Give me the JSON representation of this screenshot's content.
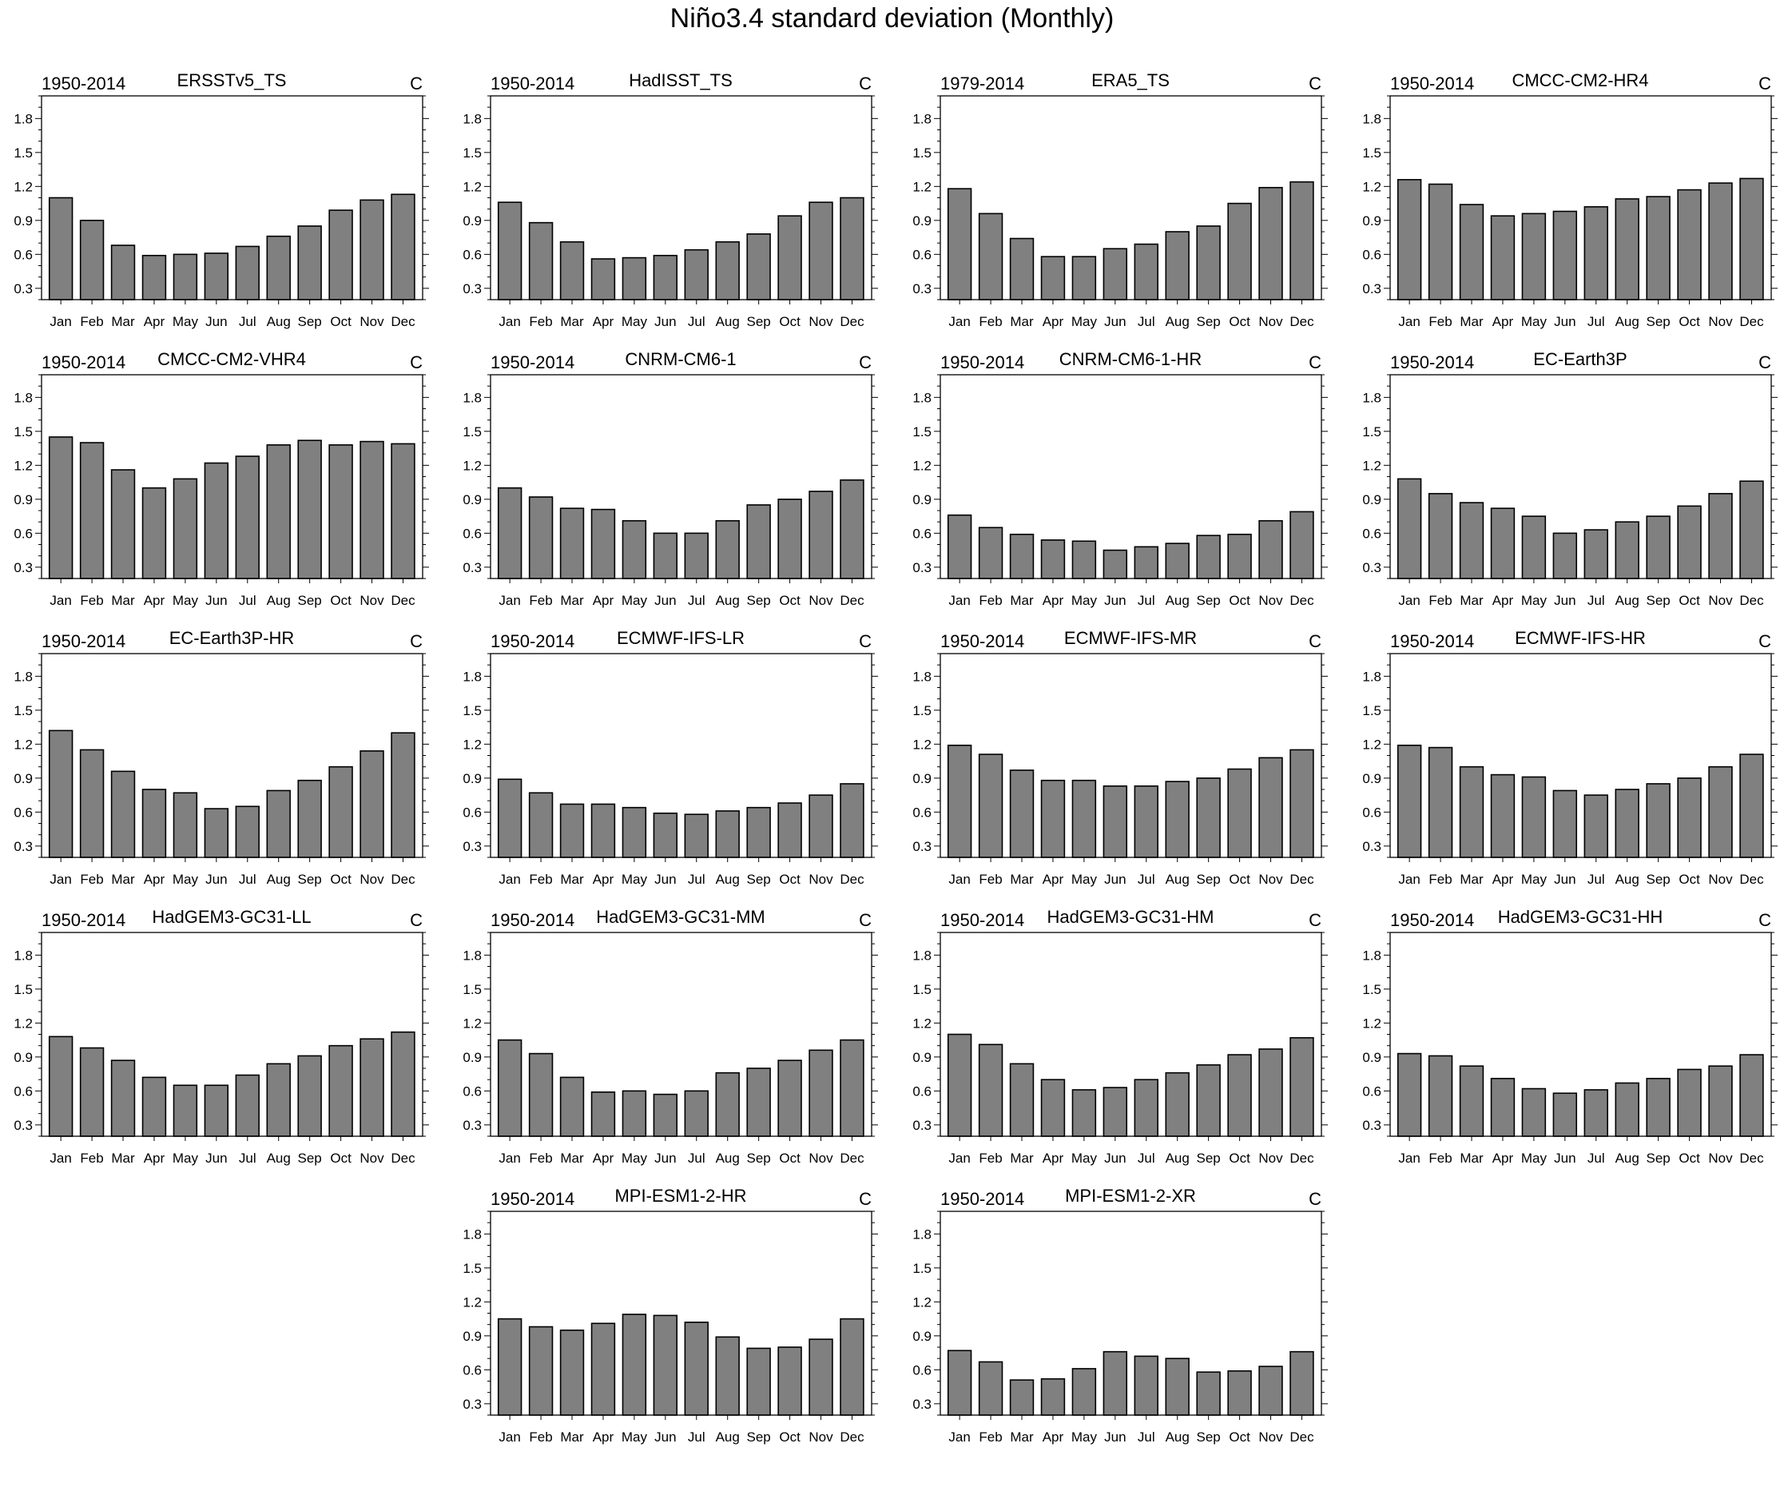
{
  "figure": {
    "title": "Niño3.4 standard deviation (Monthly)"
  },
  "chart_data": [
    {
      "type": "bar",
      "period": "1950-2014",
      "model": "ERSSTv5_TS",
      "units": "C",
      "categories": [
        "Jan",
        "Feb",
        "Mar",
        "Apr",
        "May",
        "Jun",
        "Jul",
        "Aug",
        "Sep",
        "Oct",
        "Nov",
        "Dec"
      ],
      "values": [
        1.1,
        0.9,
        0.68,
        0.59,
        0.6,
        0.61,
        0.67,
        0.76,
        0.85,
        0.99,
        1.08,
        1.13
      ],
      "ylim": [
        0.2,
        2.0
      ],
      "yticks": [
        "0.3",
        "0.6",
        "0.9",
        "1.2",
        "1.5",
        "1.8"
      ]
    },
    {
      "type": "bar",
      "period": "1950-2014",
      "model": "HadISST_TS",
      "units": "C",
      "categories": [
        "Jan",
        "Feb",
        "Mar",
        "Apr",
        "May",
        "Jun",
        "Jul",
        "Aug",
        "Sep",
        "Oct",
        "Nov",
        "Dec"
      ],
      "values": [
        1.06,
        0.88,
        0.71,
        0.56,
        0.57,
        0.59,
        0.64,
        0.71,
        0.78,
        0.94,
        1.06,
        1.1
      ],
      "ylim": [
        0.2,
        2.0
      ],
      "yticks": [
        "0.3",
        "0.6",
        "0.9",
        "1.2",
        "1.5",
        "1.8"
      ]
    },
    {
      "type": "bar",
      "period": "1979-2014",
      "model": "ERA5_TS",
      "units": "C",
      "categories": [
        "Jan",
        "Feb",
        "Mar",
        "Apr",
        "May",
        "Jun",
        "Jul",
        "Aug",
        "Sep",
        "Oct",
        "Nov",
        "Dec"
      ],
      "values": [
        1.18,
        0.96,
        0.74,
        0.58,
        0.58,
        0.65,
        0.69,
        0.8,
        0.85,
        1.05,
        1.19,
        1.24
      ],
      "ylim": [
        0.2,
        2.0
      ],
      "yticks": [
        "0.3",
        "0.6",
        "0.9",
        "1.2",
        "1.5",
        "1.8"
      ]
    },
    {
      "type": "bar",
      "period": "1950-2014",
      "model": "CMCC-CM2-HR4",
      "units": "C",
      "categories": [
        "Jan",
        "Feb",
        "Mar",
        "Apr",
        "May",
        "Jun",
        "Jul",
        "Aug",
        "Sep",
        "Oct",
        "Nov",
        "Dec"
      ],
      "values": [
        1.26,
        1.22,
        1.04,
        0.94,
        0.96,
        0.98,
        1.02,
        1.09,
        1.11,
        1.17,
        1.23,
        1.27
      ],
      "ylim": [
        0.2,
        2.0
      ],
      "yticks": [
        "0.3",
        "0.6",
        "0.9",
        "1.2",
        "1.5",
        "1.8"
      ]
    },
    {
      "type": "bar",
      "period": "1950-2014",
      "model": "CMCC-CM2-VHR4",
      "units": "C",
      "categories": [
        "Jan",
        "Feb",
        "Mar",
        "Apr",
        "May",
        "Jun",
        "Jul",
        "Aug",
        "Sep",
        "Oct",
        "Nov",
        "Dec"
      ],
      "values": [
        1.45,
        1.4,
        1.16,
        1.0,
        1.08,
        1.22,
        1.28,
        1.38,
        1.42,
        1.38,
        1.41,
        1.39
      ],
      "ylim": [
        0.2,
        2.0
      ],
      "yticks": [
        "0.3",
        "0.6",
        "0.9",
        "1.2",
        "1.5",
        "1.8"
      ]
    },
    {
      "type": "bar",
      "period": "1950-2014",
      "model": "CNRM-CM6-1",
      "units": "C",
      "categories": [
        "Jan",
        "Feb",
        "Mar",
        "Apr",
        "May",
        "Jun",
        "Jul",
        "Aug",
        "Sep",
        "Oct",
        "Nov",
        "Dec"
      ],
      "values": [
        1.0,
        0.92,
        0.82,
        0.81,
        0.71,
        0.6,
        0.6,
        0.71,
        0.85,
        0.9,
        0.97,
        1.07
      ],
      "ylim": [
        0.2,
        2.0
      ],
      "yticks": [
        "0.3",
        "0.6",
        "0.9",
        "1.2",
        "1.5",
        "1.8"
      ]
    },
    {
      "type": "bar",
      "period": "1950-2014",
      "model": "CNRM-CM6-1-HR",
      "units": "C",
      "categories": [
        "Jan",
        "Feb",
        "Mar",
        "Apr",
        "May",
        "Jun",
        "Jul",
        "Aug",
        "Sep",
        "Oct",
        "Nov",
        "Dec"
      ],
      "values": [
        0.76,
        0.65,
        0.59,
        0.54,
        0.53,
        0.45,
        0.48,
        0.51,
        0.58,
        0.59,
        0.71,
        0.79
      ],
      "ylim": [
        0.2,
        2.0
      ],
      "yticks": [
        "0.3",
        "0.6",
        "0.9",
        "1.2",
        "1.5",
        "1.8"
      ]
    },
    {
      "type": "bar",
      "period": "1950-2014",
      "model": "EC-Earth3P",
      "units": "C",
      "categories": [
        "Jan",
        "Feb",
        "Mar",
        "Apr",
        "May",
        "Jun",
        "Jul",
        "Aug",
        "Sep",
        "Oct",
        "Nov",
        "Dec"
      ],
      "values": [
        1.08,
        0.95,
        0.87,
        0.82,
        0.75,
        0.6,
        0.63,
        0.7,
        0.75,
        0.84,
        0.95,
        1.06
      ],
      "ylim": [
        0.2,
        2.0
      ],
      "yticks": [
        "0.3",
        "0.6",
        "0.9",
        "1.2",
        "1.5",
        "1.8"
      ]
    },
    {
      "type": "bar",
      "period": "1950-2014",
      "model": "EC-Earth3P-HR",
      "units": "C",
      "categories": [
        "Jan",
        "Feb",
        "Mar",
        "Apr",
        "May",
        "Jun",
        "Jul",
        "Aug",
        "Sep",
        "Oct",
        "Nov",
        "Dec"
      ],
      "values": [
        1.32,
        1.15,
        0.96,
        0.8,
        0.77,
        0.63,
        0.65,
        0.79,
        0.88,
        1.0,
        1.14,
        1.3
      ],
      "ylim": [
        0.2,
        2.0
      ],
      "yticks": [
        "0.3",
        "0.6",
        "0.9",
        "1.2",
        "1.5",
        "1.8"
      ]
    },
    {
      "type": "bar",
      "period": "1950-2014",
      "model": "ECMWF-IFS-LR",
      "units": "C",
      "categories": [
        "Jan",
        "Feb",
        "Mar",
        "Apr",
        "May",
        "Jun",
        "Jul",
        "Aug",
        "Sep",
        "Oct",
        "Nov",
        "Dec"
      ],
      "values": [
        0.89,
        0.77,
        0.67,
        0.67,
        0.64,
        0.59,
        0.58,
        0.61,
        0.64,
        0.68,
        0.75,
        0.85
      ],
      "ylim": [
        0.2,
        2.0
      ],
      "yticks": [
        "0.3",
        "0.6",
        "0.9",
        "1.2",
        "1.5",
        "1.8"
      ]
    },
    {
      "type": "bar",
      "period": "1950-2014",
      "model": "ECMWF-IFS-MR",
      "units": "C",
      "categories": [
        "Jan",
        "Feb",
        "Mar",
        "Apr",
        "May",
        "Jun",
        "Jul",
        "Aug",
        "Sep",
        "Oct",
        "Nov",
        "Dec"
      ],
      "values": [
        1.19,
        1.11,
        0.97,
        0.88,
        0.88,
        0.83,
        0.83,
        0.87,
        0.9,
        0.98,
        1.08,
        1.15
      ],
      "ylim": [
        0.2,
        2.0
      ],
      "yticks": [
        "0.3",
        "0.6",
        "0.9",
        "1.2",
        "1.5",
        "1.8"
      ]
    },
    {
      "type": "bar",
      "period": "1950-2014",
      "model": "ECMWF-IFS-HR",
      "units": "C",
      "categories": [
        "Jan",
        "Feb",
        "Mar",
        "Apr",
        "May",
        "Jun",
        "Jul",
        "Aug",
        "Sep",
        "Oct",
        "Nov",
        "Dec"
      ],
      "values": [
        1.19,
        1.17,
        1.0,
        0.93,
        0.91,
        0.79,
        0.75,
        0.8,
        0.85,
        0.9,
        1.0,
        1.11
      ],
      "ylim": [
        0.2,
        2.0
      ],
      "yticks": [
        "0.3",
        "0.6",
        "0.9",
        "1.2",
        "1.5",
        "1.8"
      ]
    },
    {
      "type": "bar",
      "period": "1950-2014",
      "model": "HadGEM3-GC31-LL",
      "units": "C",
      "categories": [
        "Jan",
        "Feb",
        "Mar",
        "Apr",
        "May",
        "Jun",
        "Jul",
        "Aug",
        "Sep",
        "Oct",
        "Nov",
        "Dec"
      ],
      "values": [
        1.08,
        0.98,
        0.87,
        0.72,
        0.65,
        0.65,
        0.74,
        0.84,
        0.91,
        1.0,
        1.06,
        1.12
      ],
      "ylim": [
        0.2,
        2.0
      ],
      "yticks": [
        "0.3",
        "0.6",
        "0.9",
        "1.2",
        "1.5",
        "1.8"
      ]
    },
    {
      "type": "bar",
      "period": "1950-2014",
      "model": "HadGEM3-GC31-MM",
      "units": "C",
      "categories": [
        "Jan",
        "Feb",
        "Mar",
        "Apr",
        "May",
        "Jun",
        "Jul",
        "Aug",
        "Sep",
        "Oct",
        "Nov",
        "Dec"
      ],
      "values": [
        1.05,
        0.93,
        0.72,
        0.59,
        0.6,
        0.57,
        0.6,
        0.76,
        0.8,
        0.87,
        0.96,
        1.05
      ],
      "ylim": [
        0.2,
        2.0
      ],
      "yticks": [
        "0.3",
        "0.6",
        "0.9",
        "1.2",
        "1.5",
        "1.8"
      ]
    },
    {
      "type": "bar",
      "period": "1950-2014",
      "model": "HadGEM3-GC31-HM",
      "units": "C",
      "categories": [
        "Jan",
        "Feb",
        "Mar",
        "Apr",
        "May",
        "Jun",
        "Jul",
        "Aug",
        "Sep",
        "Oct",
        "Nov",
        "Dec"
      ],
      "values": [
        1.1,
        1.01,
        0.84,
        0.7,
        0.61,
        0.63,
        0.7,
        0.76,
        0.83,
        0.92,
        0.97,
        1.07
      ],
      "ylim": [
        0.2,
        2.0
      ],
      "yticks": [
        "0.3",
        "0.6",
        "0.9",
        "1.2",
        "1.5",
        "1.8"
      ]
    },
    {
      "type": "bar",
      "period": "1950-2014",
      "model": "HadGEM3-GC31-HH",
      "units": "C",
      "categories": [
        "Jan",
        "Feb",
        "Mar",
        "Apr",
        "May",
        "Jun",
        "Jul",
        "Aug",
        "Sep",
        "Oct",
        "Nov",
        "Dec"
      ],
      "values": [
        0.93,
        0.91,
        0.82,
        0.71,
        0.62,
        0.58,
        0.61,
        0.67,
        0.71,
        0.79,
        0.82,
        0.92
      ],
      "ylim": [
        0.2,
        2.0
      ],
      "yticks": [
        "0.3",
        "0.6",
        "0.9",
        "1.2",
        "1.5",
        "1.8"
      ]
    },
    {
      "type": "bar",
      "period": "1950-2014",
      "model": "MPI-ESM1-2-HR",
      "units": "C",
      "categories": [
        "Jan",
        "Feb",
        "Mar",
        "Apr",
        "May",
        "Jun",
        "Jul",
        "Aug",
        "Sep",
        "Oct",
        "Nov",
        "Dec"
      ],
      "values": [
        1.05,
        0.98,
        0.95,
        1.01,
        1.09,
        1.08,
        1.02,
        0.89,
        0.79,
        0.8,
        0.87,
        1.05
      ],
      "ylim": [
        0.2,
        2.0
      ],
      "yticks": [
        "0.3",
        "0.6",
        "0.9",
        "1.2",
        "1.5",
        "1.8"
      ]
    },
    {
      "type": "bar",
      "period": "1950-2014",
      "model": "MPI-ESM1-2-XR",
      "units": "C",
      "categories": [
        "Jan",
        "Feb",
        "Mar",
        "Apr",
        "May",
        "Jun",
        "Jul",
        "Aug",
        "Sep",
        "Oct",
        "Nov",
        "Dec"
      ],
      "values": [
        0.77,
        0.67,
        0.51,
        0.52,
        0.61,
        0.76,
        0.72,
        0.7,
        0.58,
        0.59,
        0.63,
        0.76
      ],
      "ylim": [
        0.2,
        2.0
      ],
      "yticks": [
        "0.3",
        "0.6",
        "0.9",
        "1.2",
        "1.5",
        "1.8"
      ]
    }
  ],
  "style": {
    "bar_fill": "#808080",
    "bar_stroke": "#000000",
    "axis_color": "#000000"
  }
}
